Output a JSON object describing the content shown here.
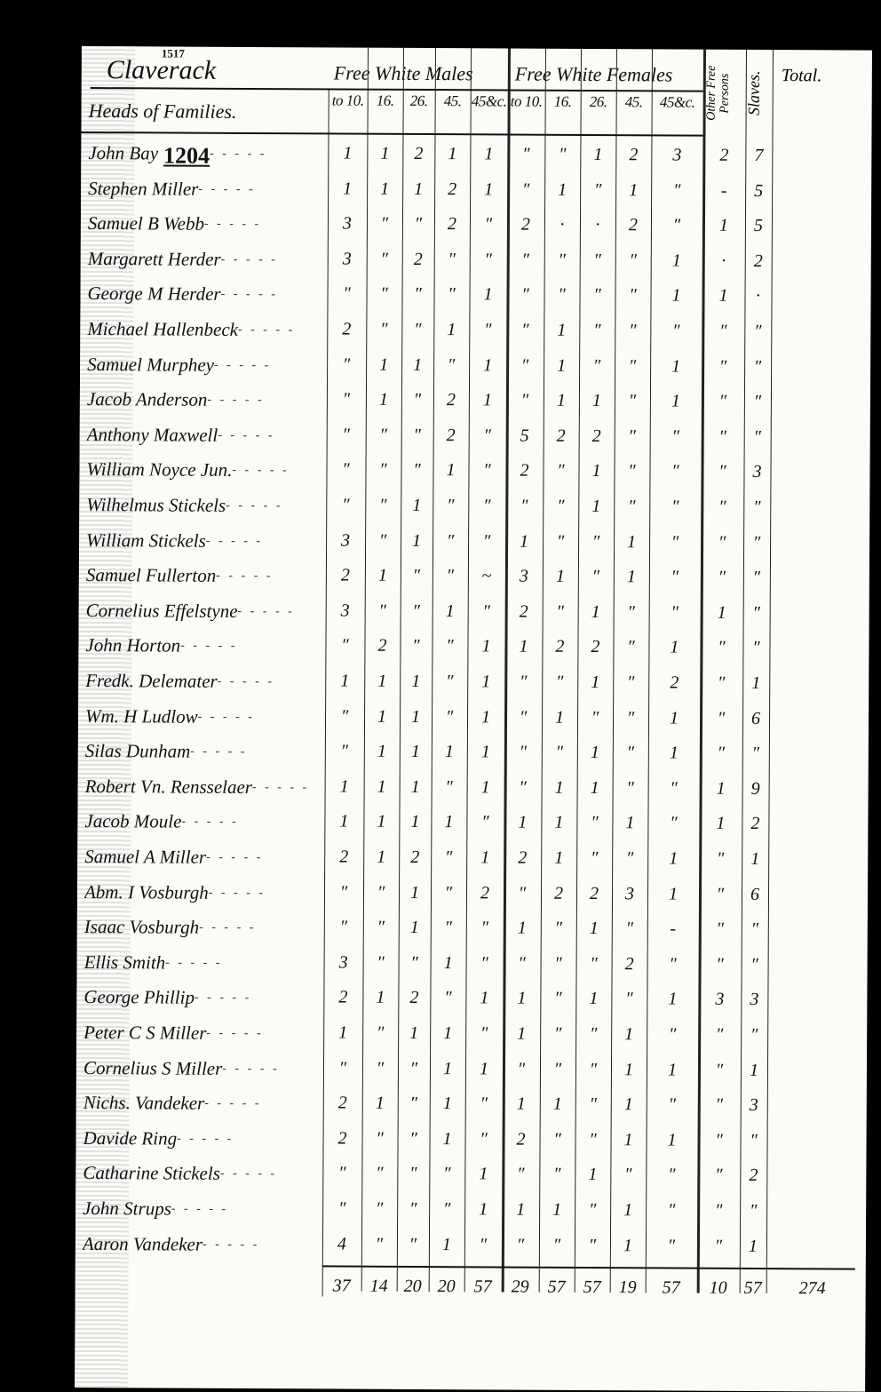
{
  "header": {
    "place": "Claverack",
    "stamp": "1517",
    "group_males": "Free White Males",
    "group_females": "Free White Females",
    "heads_label": "Heads of Families.",
    "male_cols": [
      "to 10.",
      "16.",
      "26.",
      "45.",
      "45&c."
    ],
    "female_cols": [
      "to 10.",
      "16.",
      "26.",
      "45.",
      "45&c."
    ],
    "other_free": "Other Free Persons",
    "slaves": "Slaves.",
    "total": "Total."
  },
  "rows": [
    {
      "name": "John Bay",
      "note": "1204",
      "v": [
        "1",
        "1",
        "2",
        "1",
        "1",
        "″",
        "″",
        "1",
        "2",
        "3",
        "2",
        "7"
      ]
    },
    {
      "name": "Stephen Miller",
      "v": [
        "1",
        "1",
        "1",
        "2",
        "1",
        "″",
        "1",
        "″",
        "1",
        "″",
        "-",
        "5"
      ]
    },
    {
      "name": "Samuel B Webb",
      "v": [
        "3",
        "″",
        "″",
        "2",
        "″",
        "2",
        "·",
        "·",
        "2",
        "″",
        "1",
        "5"
      ]
    },
    {
      "name": "Margarett Herder",
      "v": [
        "3",
        "″",
        "2",
        "″",
        "″",
        "″",
        "″",
        "″",
        "″",
        "1",
        "·",
        "2"
      ]
    },
    {
      "name": "George M Herder",
      "v": [
        "″",
        "″",
        "″",
        "″",
        "1",
        "″",
        "″",
        "″",
        "″",
        "1",
        "1",
        "·"
      ]
    },
    {
      "name": "Michael Hallenbeck",
      "v": [
        "2",
        "″",
        "″",
        "1",
        "″",
        "″",
        "1",
        "″",
        "″",
        "″",
        "″",
        "″"
      ]
    },
    {
      "name": "Samuel Murphey",
      "v": [
        "″",
        "1",
        "1",
        "″",
        "1",
        "″",
        "1",
        "″",
        "″",
        "1",
        "″",
        "″"
      ]
    },
    {
      "name": "Jacob Anderson",
      "v": [
        "″",
        "1",
        "″",
        "2",
        "1",
        "″",
        "1",
        "1",
        "″",
        "1",
        "″",
        "″"
      ]
    },
    {
      "name": "Anthony Maxwell",
      "v": [
        "″",
        "″",
        "″",
        "2",
        "″",
        "5",
        "2",
        "2",
        "″",
        "″",
        "″",
        "″"
      ]
    },
    {
      "name": "William Noyce Jun.",
      "v": [
        "″",
        "″",
        "″",
        "1",
        "″",
        "2",
        "″",
        "1",
        "″",
        "″",
        "″",
        "3"
      ]
    },
    {
      "name": "Wilhelmus Stickels",
      "v": [
        "″",
        "″",
        "1",
        "″",
        "″",
        "″",
        "″",
        "1",
        "″",
        "″",
        "″",
        "″"
      ]
    },
    {
      "name": "William Stickels",
      "v": [
        "3",
        "″",
        "1",
        "″",
        "″",
        "1",
        "″",
        "″",
        "1",
        "″",
        "″",
        "″"
      ]
    },
    {
      "name": "Samuel Fullerton",
      "v": [
        "2",
        "1",
        "″",
        "″",
        "~",
        "3",
        "1",
        "″",
        "1",
        "″",
        "″",
        "″"
      ]
    },
    {
      "name": "Cornelius Effelstyne",
      "v": [
        "3",
        "″",
        "″",
        "1",
        "″",
        "2",
        "″",
        "1",
        "″",
        "″",
        "1",
        "″"
      ]
    },
    {
      "name": "John Horton",
      "v": [
        "″",
        "2",
        "″",
        "″",
        "1",
        "1",
        "2",
        "2",
        "″",
        "1",
        "″",
        "″"
      ]
    },
    {
      "name": "Fredk. Delemater",
      "v": [
        "1",
        "1",
        "1",
        "″",
        "1",
        "″",
        "″",
        "1",
        "″",
        "2",
        "″",
        "1"
      ]
    },
    {
      "name": "Wm. H Ludlow",
      "v": [
        "″",
        "1",
        "1",
        "″",
        "1",
        "″",
        "1",
        "″",
        "″",
        "1",
        "″",
        "6"
      ]
    },
    {
      "name": "Silas Dunham",
      "v": [
        "″",
        "1",
        "1",
        "1",
        "1",
        "″",
        "″",
        "1",
        "″",
        "1",
        "″",
        "″"
      ]
    },
    {
      "name": "Robert Vn. Rensselaer",
      "v": [
        "1",
        "1",
        "1",
        "″",
        "1",
        "″",
        "1",
        "1",
        "″",
        "″",
        "1",
        "9"
      ]
    },
    {
      "name": "Jacob Moule",
      "v": [
        "1",
        "1",
        "1",
        "1",
        "″",
        "1",
        "1",
        "″",
        "1",
        "″",
        "1",
        "2"
      ]
    },
    {
      "name": "Samuel A Miller",
      "v": [
        "2",
        "1",
        "2",
        "″",
        "1",
        "2",
        "1",
        "″",
        "″",
        "1",
        "″",
        "1"
      ]
    },
    {
      "name": "Abm. I Vosburgh",
      "v": [
        "″",
        "″",
        "1",
        "″",
        "2",
        "″",
        "2",
        "2",
        "3",
        "1",
        "″",
        "6"
      ]
    },
    {
      "name": "Isaac Vosburgh",
      "v": [
        "″",
        "″",
        "1",
        "″",
        "″",
        "1",
        "″",
        "1",
        "″",
        "-",
        "″",
        "″"
      ]
    },
    {
      "name": "Ellis Smith",
      "v": [
        "3",
        "″",
        "″",
        "1",
        "″",
        "″",
        "″",
        "″",
        "2",
        "″",
        "″",
        "″"
      ]
    },
    {
      "name": "George Phillip",
      "v": [
        "2",
        "1",
        "2",
        "″",
        "1",
        "1",
        "″",
        "1",
        "″",
        "1",
        "3",
        "3"
      ]
    },
    {
      "name": "Peter C S Miller",
      "v": [
        "1",
        "″",
        "1",
        "1",
        "″",
        "1",
        "″",
        "″",
        "1",
        "″",
        "″",
        "″"
      ]
    },
    {
      "name": "Cornelius S Miller",
      "v": [
        "″",
        "″",
        "″",
        "1",
        "1",
        "″",
        "″",
        "″",
        "1",
        "1",
        "″",
        "1"
      ]
    },
    {
      "name": "Nichs. Vandeker",
      "v": [
        "2",
        "1",
        "″",
        "1",
        "″",
        "1",
        "1",
        "″",
        "1",
        "″",
        "″",
        "3"
      ]
    },
    {
      "name": "Davide Ring",
      "v": [
        "2",
        "″",
        "″",
        "1",
        "″",
        "2",
        "″",
        "″",
        "1",
        "1",
        "″",
        "″"
      ]
    },
    {
      "name": "Catharine Stickels",
      "v": [
        "″",
        "″",
        "″",
        "″",
        "1",
        "″",
        "″",
        "1",
        "″",
        "″",
        "″",
        "2"
      ]
    },
    {
      "name": "John Strups",
      "v": [
        "″",
        "″",
        "″",
        "″",
        "1",
        "1",
        "1",
        "″",
        "1",
        "″",
        "″",
        "″"
      ]
    },
    {
      "name": "Aaron Vandeker",
      "v": [
        "4",
        "″",
        "″",
        "1",
        "″",
        "″",
        "″",
        "″",
        "1",
        "″",
        "″",
        "1"
      ]
    }
  ],
  "totals": {
    "v": [
      "37",
      "14",
      "20",
      "20",
      "57",
      "29",
      "57",
      "57",
      "19",
      "57",
      "10",
      "57"
    ],
    "grand": "274"
  }
}
